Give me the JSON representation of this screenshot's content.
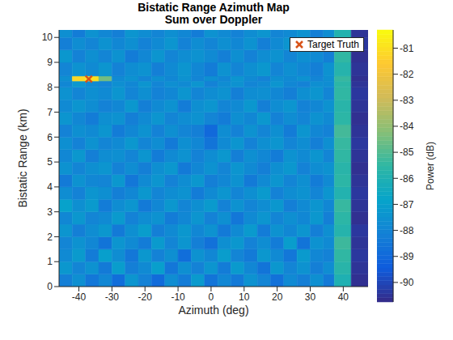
{
  "chart_data": {
    "type": "heatmap",
    "title": "Bistatic Range Azimuth Map",
    "subtitle": "Sum over Doppler",
    "x_label": "Azimuth (deg)",
    "y_label": "Bistatic Range (km)",
    "xlim": [
      -46,
      47.5
    ],
    "xticks": [
      -40,
      -30,
      -20,
      -10,
      0,
      10,
      20,
      30,
      40
    ],
    "ylim": [
      0,
      10.3
    ],
    "yticks": [
      0,
      1,
      2,
      3,
      4,
      5,
      6,
      7,
      8,
      9,
      10
    ],
    "x_edges": [
      -46,
      -42,
      -38,
      -34,
      -30,
      -26,
      -22,
      -18,
      -14,
      -10,
      -6,
      -2,
      2,
      6,
      10,
      14,
      18,
      22,
      26,
      30,
      34,
      37.3,
      42.4,
      47.5
    ],
    "y_edges": [
      0,
      0.5,
      1,
      1.5,
      2,
      2.5,
      3,
      3.5,
      4,
      4.5,
      5,
      5.5,
      6,
      6.5,
      7,
      7.5,
      8,
      8.25,
      8.45,
      9,
      9.5,
      10,
      10.3
    ],
    "cells": [
      [
        -88.2,
        -87.6,
        -88.5,
        -87.9,
        -88.8,
        -87.4,
        -88.1,
        -88.9,
        -87.7,
        -88.3,
        -87.2,
        -88.6,
        -87.9,
        -88.4,
        -87.5,
        -88.0,
        -88.7,
        -87.8,
        -88.2,
        -87.6,
        -88.4,
        -86.0,
        -90.6
      ],
      [
        -87.3,
        -88.0,
        -87.5,
        -88.4,
        -87.1,
        -88.2,
        -87.8,
        -87.0,
        -88.5,
        -87.6,
        -88.1,
        -87.4,
        -88.3,
        -87.2,
        -87.9,
        -88.6,
        -87.3,
        -88.0,
        -87.5,
        -88.2,
        -87.7,
        -85.7,
        -90.5
      ],
      [
        -87.8,
        -87.2,
        -88.3,
        -87.0,
        -87.7,
        -88.5,
        -87.3,
        -88.1,
        -87.6,
        -88.8,
        -87.5,
        -87.9,
        -87.1,
        -88.0,
        -88.4,
        -87.3,
        -87.8,
        -88.5,
        -87.2,
        -87.9,
        -88.1,
        -85.5,
        -90.4
      ],
      [
        -88.0,
        -87.5,
        -87.9,
        -88.6,
        -87.4,
        -87.8,
        -88.3,
        -87.2,
        -88.0,
        -87.4,
        -88.2,
        -88.7,
        -87.6,
        -87.3,
        -88.1,
        -87.7,
        -88.3,
        -87.1,
        -88.6,
        -87.5,
        -87.8,
        -85.3,
        -90.5
      ],
      [
        -87.4,
        -88.2,
        -87.7,
        -87.3,
        -88.4,
        -87.6,
        -87.1,
        -88.2,
        -87.8,
        -87.3,
        -87.9,
        -87.5,
        -88.4,
        -87.8,
        -87.2,
        -88.3,
        -87.5,
        -87.9,
        -87.4,
        -88.2,
        -87.6,
        -85.8,
        -90.4
      ],
      [
        -87.9,
        -87.3,
        -88.0,
        -87.8,
        -87.2,
        -88.1,
        -87.7,
        -87.5,
        -88.3,
        -87.9,
        -87.4,
        -88.1,
        -87.6,
        -88.5,
        -87.8,
        -87.4,
        -88.0,
        -87.6,
        -87.9,
        -87.3,
        -88.2,
        -85.6,
        -90.6
      ],
      [
        -86.9,
        -87.6,
        -87.2,
        -88.3,
        -87.7,
        -87.4,
        -88.4,
        -87.9,
        -87.3,
        -88.0,
        -87.6,
        -87.2,
        -88.1,
        -87.5,
        -88.0,
        -87.7,
        -87.3,
        -88.2,
        -87.8,
        -87.4,
        -87.9,
        -85.4,
        -90.5
      ],
      [
        -87.7,
        -88.1,
        -87.4,
        -87.6,
        -88.2,
        -87.9,
        -87.3,
        -88.0,
        -87.7,
        -87.5,
        -88.3,
        -87.8,
        -87.4,
        -88.0,
        -87.6,
        -87.2,
        -88.1,
        -87.7,
        -87.5,
        -88.0,
        -87.4,
        -85.9,
        -90.4
      ],
      [
        -88.4,
        -87.5,
        -87.9,
        -88.0,
        -87.3,
        -88.5,
        -87.8,
        -87.4,
        -88.1,
        -87.7,
        -87.3,
        -88.2,
        -87.9,
        -87.5,
        -88.4,
        -87.8,
        -87.4,
        -88.0,
        -87.6,
        -88.3,
        -87.8,
        -85.6,
        -90.5
      ],
      [
        -87.5,
        -88.0,
        -87.6,
        -87.4,
        -88.1,
        -87.7,
        -88.2,
        -87.6,
        -87.3,
        -88.4,
        -87.9,
        -87.5,
        -88.0,
        -87.4,
        -87.8,
        -88.2,
        -87.6,
        -87.3,
        -88.1,
        -87.7,
        -87.5,
        -85.7,
        -90.6
      ],
      [
        -87.9,
        -87.3,
        -88.2,
        -87.7,
        -87.6,
        -88.0,
        -87.4,
        -88.3,
        -87.8,
        -87.5,
        -88.1,
        -87.7,
        -87.3,
        -88.2,
        -87.6,
        -87.9,
        -88.3,
        -87.5,
        -87.8,
        -87.4,
        -88.0,
        -85.5,
        -90.5
      ],
      [
        -87.6,
        -88.1,
        -87.5,
        -88.0,
        -87.8,
        -87.3,
        -88.0,
        -87.7,
        -88.4,
        -87.6,
        -87.9,
        -88.6,
        -87.8,
        -87.4,
        -88.1,
        -87.6,
        -87.4,
        -88.0,
        -87.7,
        -88.2,
        -87.6,
        -85.4,
        -90.4
      ],
      [
        -88.1,
        -87.6,
        -87.8,
        -87.4,
        -88.3,
        -87.9,
        -87.5,
        -88.1,
        -87.6,
        -88.0,
        -88.2,
        -89.0,
        -87.7,
        -88.1,
        -87.5,
        -88.0,
        -87.6,
        -88.3,
        -87.4,
        -87.9,
        -88.1,
        -85.2,
        -90.5
      ],
      [
        -87.4,
        -87.9,
        -88.3,
        -87.6,
        -87.5,
        -88.2,
        -87.8,
        -87.4,
        -88.0,
        -87.7,
        -87.5,
        -88.0,
        -88.3,
        -87.6,
        -87.9,
        -87.3,
        -88.1,
        -87.7,
        -88.0,
        -87.5,
        -87.8,
        -85.6,
        -90.6
      ],
      [
        -87.8,
        -87.4,
        -87.7,
        -88.1,
        -87.9,
        -87.3,
        -88.2,
        -87.8,
        -87.5,
        -88.3,
        -87.6,
        -87.4,
        -88.0,
        -87.8,
        -87.3,
        -88.2,
        -87.7,
        -87.4,
        -88.1,
        -87.9,
        -87.5,
        -85.7,
        -90.5
      ],
      [
        -87.5,
        -88.0,
        -87.6,
        -87.8,
        -87.4,
        -88.0,
        -87.6,
        -88.1,
        -87.9,
        -87.4,
        -88.0,
        -87.7,
        -87.5,
        -88.2,
        -87.7,
        -87.6,
        -87.9,
        -88.2,
        -87.6,
        -87.4,
        -88.0,
        -85.5,
        -90.4
      ],
      [
        -87.9,
        -87.3,
        -87.8,
        -88.0,
        -87.6,
        -87.9,
        -87.4,
        -88.0,
        -87.6,
        -87.8,
        -87.4,
        -88.1,
        -87.7,
        -87.5,
        -88.0,
        -87.8,
        -87.4,
        -87.9,
        -88.1,
        -87.6,
        -87.7,
        -85.6,
        -90.5
      ],
      [
        -87.6,
        -81.2,
        -81.0,
        -84.5,
        -87.8,
        -87.5,
        -88.0,
        -87.6,
        -87.9,
        -87.5,
        -88.0,
        -87.6,
        -87.9,
        -87.4,
        -87.8,
        -88.1,
        -87.6,
        -87.8,
        -87.5,
        -88.0,
        -87.6,
        -85.4,
        -90.6
      ],
      [
        -88.0,
        -87.5,
        -87.8,
        -87.4,
        -88.1,
        -87.7,
        -87.5,
        -88.2,
        -87.8,
        -87.4,
        -87.9,
        -88.3,
        -87.5,
        -88.0,
        -87.6,
        -87.3,
        -88.0,
        -87.6,
        -87.9,
        -88.2,
        -87.5,
        -85.8,
        -90.5
      ],
      [
        -87.3,
        -88.1,
        -87.6,
        -88.0,
        -87.5,
        -88.3,
        -87.9,
        -87.4,
        -88.0,
        -87.7,
        -87.5,
        -87.8,
        -88.2,
        -87.6,
        -88.1,
        -87.7,
        -87.5,
        -88.0,
        -87.6,
        -87.8,
        -88.2,
        -85.5,
        -90.6
      ],
      [
        -88.2,
        -87.7,
        -88.0,
        -87.5,
        -87.9,
        -87.6,
        -88.1,
        -87.8,
        -87.4,
        -88.1,
        -87.7,
        -88.0,
        -87.6,
        -87.9,
        -87.5,
        -88.2,
        -87.8,
        -87.4,
        -88.0,
        -87.6,
        -87.9,
        -85.6,
        -90.4
      ],
      [
        -87.6,
        -88.3,
        -87.5,
        -87.9,
        -88.2,
        -87.4,
        -87.7,
        -88.0,
        -87.6,
        -87.9,
        -88.3,
        -87.5,
        -87.8,
        -88.1,
        -87.7,
        -87.4,
        -88.0,
        -87.8,
        -87.5,
        -88.2,
        -87.7,
        -85.9,
        -90.5
      ]
    ],
    "colorbar_label": "Power (dB)",
    "colorbar_range": [
      -90.75,
      -80.3
    ],
    "colorbar_ticks": [
      -90,
      -89,
      -88,
      -87,
      -86,
      -85,
      -84,
      -83,
      -82,
      -81
    ],
    "series": [
      {
        "name": "Target Truth",
        "type": "scatter",
        "marker": "x",
        "color": "#d95319",
        "x": [
          -37
        ],
        "values": [
          8.33
        ]
      }
    ],
    "legend": "upper right"
  }
}
